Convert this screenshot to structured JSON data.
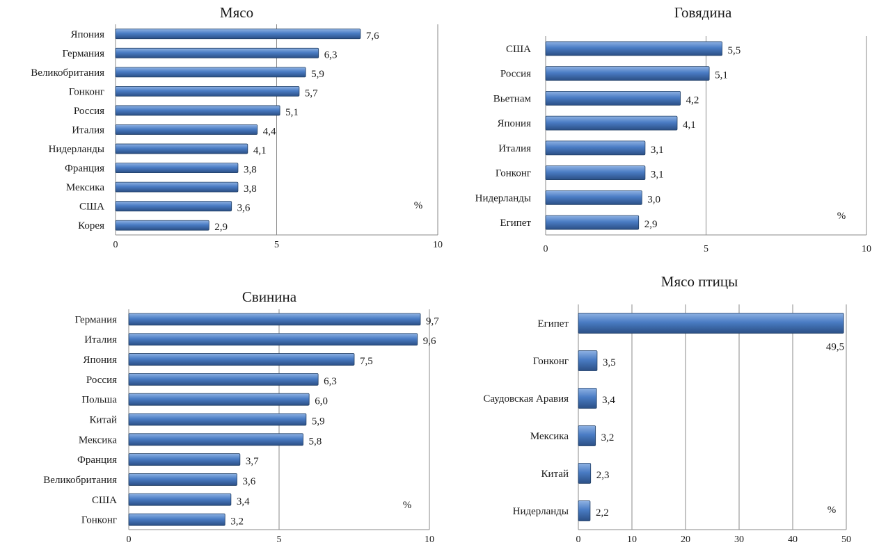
{
  "chart_data": [
    {
      "type": "bar",
      "title": "Мясо",
      "categories": [
        "Япония",
        "Германия",
        "Великобритания",
        "Гонконг",
        "Россия",
        "Италия",
        "Нидерланды",
        "Франция",
        "Мексика",
        "США",
        "Корея"
      ],
      "values": [
        7.6,
        6.3,
        5.9,
        5.7,
        5.1,
        4.4,
        4.1,
        3.8,
        3.8,
        3.6,
        2.9
      ],
      "value_labels": [
        "7,6",
        "6,3",
        "5,9",
        "5,7",
        "5,1",
        "4,4",
        "4,1",
        "3,8",
        "3,8",
        "3,6",
        "2,9"
      ],
      "xlim": [
        0,
        10
      ],
      "xticks": [
        0,
        5,
        10
      ],
      "unit": "%",
      "orientation": "horizontal",
      "grid": true
    },
    {
      "type": "bar",
      "title": "Говядина",
      "categories": [
        "США",
        "Россия",
        "Вьетнам",
        "Япония",
        "Италия",
        "Гонконг",
        "Нидерланды",
        "Египет"
      ],
      "values": [
        5.5,
        5.1,
        4.2,
        4.1,
        3.1,
        3.1,
        3.0,
        2.9
      ],
      "value_labels": [
        "5,5",
        "5,1",
        "4,2",
        "4,1",
        "3,1",
        "3,1",
        "3,0",
        "2,9"
      ],
      "xlim": [
        0,
        10
      ],
      "xticks": [
        0,
        5,
        10
      ],
      "unit": "%",
      "orientation": "horizontal",
      "grid": true
    },
    {
      "type": "bar",
      "title": "Свинина",
      "categories": [
        "Германия",
        "Италия",
        "Япония",
        "Россия",
        "Польша",
        "Китай",
        "Мексика",
        "Франция",
        "Великобритания",
        "США",
        "Гонконг"
      ],
      "values": [
        9.7,
        9.6,
        7.5,
        6.3,
        6.0,
        5.9,
        5.8,
        3.7,
        3.6,
        3.4,
        3.2
      ],
      "value_labels": [
        "9,7",
        "9,6",
        "7,5",
        "6,3",
        "6,0",
        "5,9",
        "5,8",
        "3,7",
        "3,6",
        "3,4",
        "3,2"
      ],
      "xlim": [
        0,
        10
      ],
      "xticks": [
        0,
        5,
        10
      ],
      "unit": "%",
      "orientation": "horizontal",
      "grid": true
    },
    {
      "type": "bar",
      "title": "Мясо птицы",
      "categories": [
        "Египет",
        "Гонконг",
        "Саудовская Аравия",
        "Мексика",
        "Китай",
        "Нидерланды"
      ],
      "values": [
        49.5,
        3.5,
        3.4,
        3.2,
        2.3,
        2.2
      ],
      "value_labels": [
        "49,5",
        "3,5",
        "3,4",
        "3,2",
        "2,3",
        "2,2"
      ],
      "xlim": [
        0,
        50
      ],
      "xticks": [
        0,
        10,
        20,
        30,
        40,
        50
      ],
      "unit": "%",
      "orientation": "horizontal",
      "grid": true,
      "value_label_position": "below-end"
    }
  ],
  "colors": {
    "bar_light": "#8fb2e3",
    "bar_mid": "#4a7cc4",
    "bar_dark": "#2b4f85",
    "grid": "#8a8a8a"
  }
}
